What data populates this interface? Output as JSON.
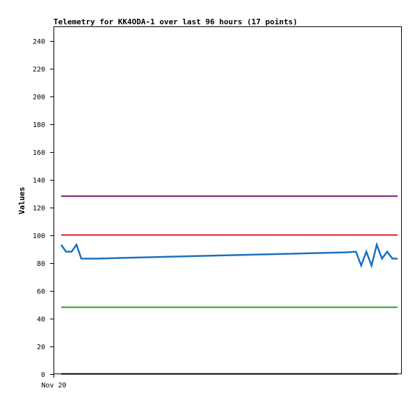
{
  "chart_data": {
    "type": "line",
    "title": "Telemetry for KK4ODA-1 over last 96 hours (17 points)",
    "xlabel": "",
    "ylabel": "Values",
    "x_ticks": [
      "Nov 20"
    ],
    "ylim": [
      0,
      250
    ],
    "y_ticks": [
      0,
      20,
      40,
      60,
      80,
      100,
      120,
      140,
      160,
      180,
      200,
      220,
      240
    ],
    "grid": false,
    "legend": "none",
    "xlim": [
      0,
      100
    ],
    "series": [
      {
        "color": "#000000",
        "x": [
          0,
          96.9
        ],
        "y": [
          0,
          0
        ]
      },
      {
        "color": "#7b0f6e",
        "x": [
          0,
          96.9
        ],
        "y": [
          128,
          128
        ]
      },
      {
        "color": "#e01b1b",
        "x": [
          0,
          96.9
        ],
        "y": [
          100,
          100
        ]
      },
      {
        "color": "#2a9d1f",
        "x": [
          0,
          96.9
        ],
        "y": [
          48,
          48
        ]
      },
      {
        "color": "#1a6fc0",
        "x": [
          0,
          1.4,
          3.0,
          4.4,
          5.8,
          10.5,
          17.4,
          25.3,
          33.2,
          41.3,
          49.4,
          57.5,
          65.6,
          73.7,
          81.8,
          84.9,
          86.4,
          87.9,
          89.4,
          90.9,
          92.4,
          93.9,
          95.4,
          96.9
        ],
        "y": [
          93,
          88,
          88,
          93,
          83,
          83,
          83.5,
          84,
          84.5,
          85,
          85.5,
          86,
          86.5,
          87,
          87.5,
          88,
          78,
          88,
          78,
          93,
          83,
          88,
          83,
          83
        ]
      }
    ]
  }
}
